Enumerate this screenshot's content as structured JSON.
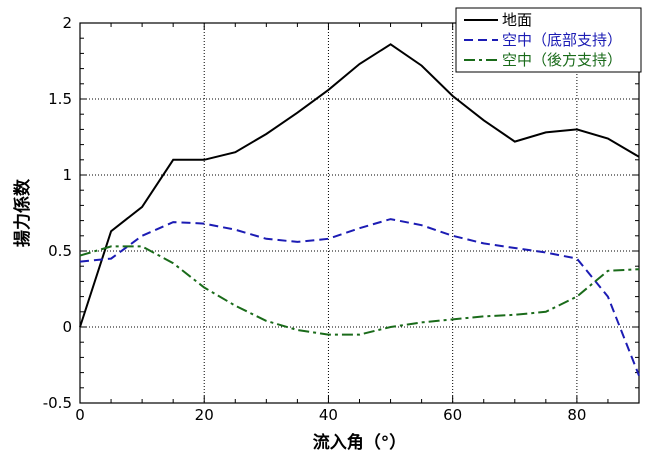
{
  "chart_data": {
    "type": "line",
    "xlabel": "流入角（°）",
    "ylabel": "揚力係数",
    "xlim": [
      0,
      90
    ],
    "ylim": [
      -0.5,
      2
    ],
    "x_ticks": [
      "0",
      "20",
      "40",
      "60",
      "80"
    ],
    "y_ticks": [
      "-0.5",
      "0",
      "0.5",
      "1",
      "1.5",
      "2"
    ],
    "grid": "dotted",
    "legend_position": "top-right",
    "series": [
      {
        "name": "地面",
        "color": "#000000",
        "dash": "solid",
        "points": [
          [
            0,
            0
          ],
          [
            5,
            0.63
          ],
          [
            10,
            0.79
          ],
          [
            15,
            1.1
          ],
          [
            20,
            1.1
          ],
          [
            25,
            1.15
          ],
          [
            30,
            1.27
          ],
          [
            35,
            1.41
          ],
          [
            40,
            1.56
          ],
          [
            45,
            1.73
          ],
          [
            50,
            1.86
          ],
          [
            55,
            1.72
          ],
          [
            60,
            1.52
          ],
          [
            65,
            1.36
          ],
          [
            70,
            1.22
          ],
          [
            75,
            1.28
          ],
          [
            80,
            1.3
          ],
          [
            85,
            1.24
          ],
          [
            90,
            1.12
          ]
        ]
      },
      {
        "name": "空中（底部支持）",
        "color": "#1c1cb4",
        "dash": "dashed",
        "points": [
          [
            0,
            0.43
          ],
          [
            5,
            0.45
          ],
          [
            10,
            0.6
          ],
          [
            15,
            0.69
          ],
          [
            20,
            0.68
          ],
          [
            25,
            0.64
          ],
          [
            30,
            0.58
          ],
          [
            35,
            0.56
          ],
          [
            40,
            0.58
          ],
          [
            45,
            0.65
          ],
          [
            50,
            0.71
          ],
          [
            55,
            0.67
          ],
          [
            60,
            0.6
          ],
          [
            65,
            0.55
          ],
          [
            70,
            0.52
          ],
          [
            75,
            0.49
          ],
          [
            80,
            0.45
          ],
          [
            85,
            0.2
          ],
          [
            90,
            -0.32
          ]
        ]
      },
      {
        "name": "空中（後方支持）",
        "color": "#1a6b1a",
        "dash": "dashdot",
        "points": [
          [
            0,
            0.47
          ],
          [
            5,
            0.53
          ],
          [
            10,
            0.53
          ],
          [
            15,
            0.42
          ],
          [
            20,
            0.26
          ],
          [
            25,
            0.14
          ],
          [
            30,
            0.04
          ],
          [
            35,
            -0.02
          ],
          [
            40,
            -0.05
          ],
          [
            45,
            -0.05
          ],
          [
            50,
            0.0
          ],
          [
            55,
            0.03
          ],
          [
            60,
            0.05
          ],
          [
            65,
            0.07
          ],
          [
            70,
            0.08
          ],
          [
            75,
            0.1
          ],
          [
            80,
            0.2
          ],
          [
            85,
            0.37
          ],
          [
            90,
            0.38
          ]
        ]
      }
    ]
  }
}
